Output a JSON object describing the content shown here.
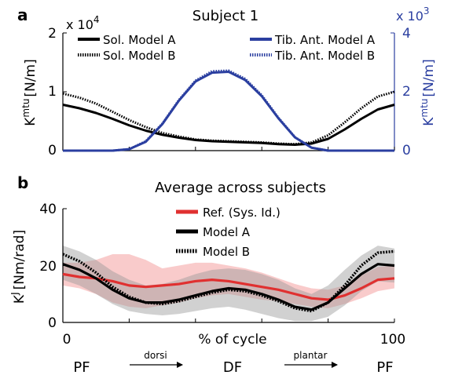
{
  "colors": {
    "black": "#000000",
    "blue": "#2b3fa0",
    "red": "#e03030",
    "red_band": "#f4a6a6",
    "gray_band": "#b8b8b8",
    "axis": "#000000"
  },
  "chart_data": [
    {
      "panel_letter": "a",
      "type": "line",
      "title": "Subject 1",
      "x": [
        0,
        5,
        10,
        15,
        20,
        25,
        30,
        35,
        40,
        45,
        50,
        55,
        60,
        65,
        70,
        75,
        80,
        85,
        90,
        95,
        100
      ],
      "xlim": [
        0,
        100
      ],
      "left_axis": {
        "label_base": "K",
        "label_sup": "mtu",
        "label_unit": "[N/m]",
        "multiplier_base": "x 10",
        "multiplier_exp": "4",
        "ylim": [
          0,
          2
        ],
        "ticks": [
          "0",
          "1",
          "2"
        ]
      },
      "right_axis": {
        "label_base": "K",
        "label_sup": "mtu",
        "label_unit": "[N/m]",
        "multiplier_base": "x 10",
        "multiplier_exp": "3",
        "ylim": [
          0,
          4
        ],
        "ticks": [
          "0",
          "2",
          "4"
        ]
      },
      "legend_left": [
        "Sol. Model A",
        "Sol. Model B"
      ],
      "legend_right": [
        "Tib. Ant. Model A",
        "Tib. Ant. Model B"
      ],
      "series": [
        {
          "name": "Sol. Model A",
          "axis": "left",
          "style": "solid",
          "color": "#000000",
          "values": [
            0.78,
            0.72,
            0.64,
            0.54,
            0.43,
            0.34,
            0.27,
            0.22,
            0.18,
            0.16,
            0.15,
            0.14,
            0.13,
            0.11,
            0.1,
            0.12,
            0.2,
            0.36,
            0.54,
            0.7,
            0.78
          ]
        },
        {
          "name": "Sol. Model B",
          "axis": "left",
          "style": "dotted",
          "color": "#000000",
          "values": [
            0.97,
            0.9,
            0.8,
            0.66,
            0.52,
            0.4,
            0.3,
            0.24,
            0.19,
            0.17,
            0.16,
            0.15,
            0.14,
            0.12,
            0.11,
            0.14,
            0.26,
            0.48,
            0.72,
            0.92,
            1.0
          ]
        },
        {
          "name": "Tib. Ant. Model A",
          "axis": "right",
          "style": "solid",
          "color": "#2b3fa0",
          "values": [
            0.0,
            0.0,
            0.0,
            0.0,
            0.05,
            0.3,
            0.9,
            1.7,
            2.35,
            2.65,
            2.68,
            2.4,
            1.85,
            1.1,
            0.45,
            0.1,
            0.0,
            0.0,
            0.0,
            0.0,
            0.0
          ]
        },
        {
          "name": "Tib. Ant. Model B",
          "axis": "right",
          "style": "dotted",
          "color": "#2b3fa0",
          "values": [
            0.0,
            0.0,
            0.0,
            0.0,
            0.05,
            0.32,
            0.92,
            1.72,
            2.38,
            2.7,
            2.72,
            2.44,
            1.88,
            1.12,
            0.46,
            0.1,
            0.0,
            0.0,
            0.0,
            0.0,
            0.0
          ]
        }
      ]
    },
    {
      "panel_letter": "b",
      "type": "line",
      "title": "Average across subjects",
      "x": [
        0,
        5,
        10,
        15,
        20,
        25,
        30,
        35,
        40,
        45,
        50,
        55,
        60,
        65,
        70,
        75,
        80,
        85,
        90,
        95,
        100
      ],
      "xlim": [
        0,
        100
      ],
      "xlabel": "% of cycle",
      "xticks": [
        "0",
        "100"
      ],
      "ylabel_base": "K",
      "ylabel_sup": "J",
      "ylabel_unit": "[Nm/rad]",
      "ylim": [
        0,
        40
      ],
      "yticks": [
        "0",
        "20",
        "40"
      ],
      "legend": [
        "Ref. (Sys. Id.)",
        "Model A",
        "Model B"
      ],
      "series": [
        {
          "name": "Ref. (Sys. Id.)",
          "style": "solid",
          "color": "#e03030",
          "values": [
            17,
            16,
            15.5,
            14.5,
            13,
            12.5,
            13,
            13.5,
            14.5,
            15,
            14.5,
            13.5,
            12.5,
            11.5,
            10,
            8.5,
            8,
            9.5,
            12,
            15,
            15.5
          ],
          "band_lower": [
            13,
            12,
            10,
            7,
            5.5,
            5,
            6,
            7,
            8.5,
            9.5,
            10,
            9,
            8,
            7.5,
            6.5,
            5.5,
            5,
            6.5,
            8.5,
            11,
            12
          ],
          "band_upper": [
            21,
            21,
            22,
            24,
            24,
            22,
            19,
            20,
            21,
            21,
            20,
            19,
            17.5,
            15.5,
            13.5,
            12,
            11.5,
            13,
            16.5,
            19.5,
            20
          ]
        },
        {
          "name": "Model A",
          "style": "solid",
          "color": "#000000",
          "values": [
            20.5,
            18.5,
            15.5,
            11.5,
            8.5,
            7,
            7,
            8,
            9.5,
            11,
            12,
            11.5,
            10,
            8,
            5.5,
            4.5,
            7,
            12,
            17,
            20.5,
            20
          ],
          "band_lower": [
            15,
            13,
            10,
            6.5,
            4,
            3,
            2.5,
            3,
            4,
            5,
            5.5,
            4.5,
            3,
            1.5,
            0.5,
            0.5,
            2,
            6,
            11,
            14.5,
            14
          ],
          "band_upper": [
            27,
            25,
            22,
            18,
            15,
            13,
            13.5,
            15,
            17,
            18.5,
            19,
            18.5,
            17,
            15,
            12,
            10,
            13,
            18.5,
            23.5,
            27,
            26
          ]
        },
        {
          "name": "Model B",
          "style": "dotted",
          "color": "#000000",
          "values": [
            24,
            21.5,
            17.5,
            12.5,
            9,
            7,
            6.5,
            7.5,
            9,
            10.5,
            11.5,
            11,
            9.5,
            7.5,
            5,
            4,
            7,
            13,
            20,
            24.5,
            25
          ]
        }
      ],
      "phase_labels": {
        "left": "PF",
        "middle": "DF",
        "right": "PF",
        "arrow1": "dorsi",
        "arrow2": "plantar"
      }
    }
  ]
}
